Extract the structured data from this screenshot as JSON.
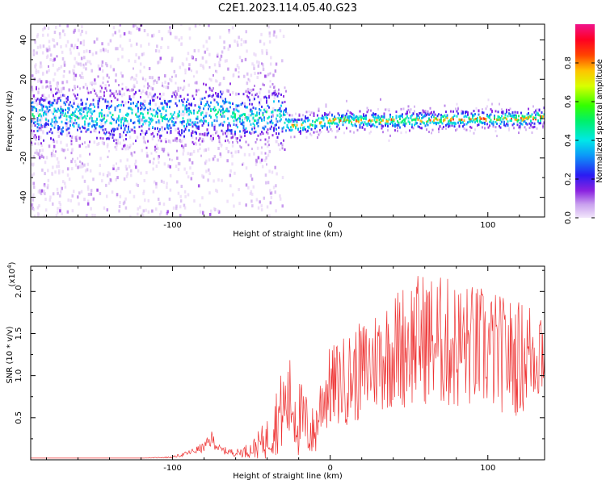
{
  "title": "C2E1.2023.114.05.40.G23",
  "chart_data": [
    {
      "type": "heatmap",
      "xlabel": "Height of straight line (km)",
      "ylabel": "Frequency (Hz)",
      "xlim": [
        -190,
        136
      ],
      "ylim": [
        -50,
        48
      ],
      "x_ticks": [
        -100,
        0,
        100
      ],
      "y_ticks": [
        -40,
        -20,
        0,
        20,
        40
      ],
      "grid": false,
      "description_of_data": "Spectrogram (normalized spectral amplitude). Broad noisy purple/blue scatter for x < -30 km spanning about -45 to +48 Hz; narrow high-amplitude band near 0 Hz for x > -25 km, rising slightly from about -2 Hz to +2 Hz.",
      "ridge": {
        "x": [
          -190,
          -150,
          -100,
          -70,
          -50,
          -35,
          -25,
          0,
          50,
          100,
          130,
          136
        ],
        "y": [
          2,
          1,
          1,
          3,
          0,
          3,
          -4,
          -1,
          -1,
          0,
          0,
          2
        ]
      },
      "colorbar": {
        "label": "Normalized spectral amplitude",
        "range": [
          0.0,
          1.0
        ],
        "ticks": [
          "0.0",
          "0.2",
          "0.4",
          "0.6",
          "0.8"
        ]
      }
    },
    {
      "type": "line",
      "xlabel": "Height of straight line (km)",
      "ylabel": "SNR (10 * v/v)",
      "y_multiplier": "(x10",
      "y_multiplier_exp": "4",
      "y_multiplier_close": ")",
      "xlim": [
        -190,
        136
      ],
      "ylim": [
        0,
        2.3
      ],
      "x_ticks": [
        -100,
        0,
        100
      ],
      "y_ticks": [
        "0.5",
        "1.0",
        "1.5",
        "2.0"
      ],
      "y_tick_values": [
        0.5,
        1.0,
        1.5,
        2.0
      ],
      "color": "#ee3333",
      "series": [
        {
          "x": [
            -190,
            -120,
            -100,
            -90,
            -80,
            -75,
            -70,
            -60,
            -50,
            -40,
            -35,
            -30,
            -25,
            -20,
            -15,
            -10,
            -5,
            0,
            10,
            20,
            30,
            40,
            50,
            60,
            70,
            80,
            90,
            100,
            110,
            120,
            130,
            136
          ],
          "y": [
            0.02,
            0.02,
            0.03,
            0.08,
            0.15,
            0.25,
            0.12,
            0.08,
            0.12,
            0.25,
            0.45,
            0.6,
            0.7,
            0.5,
            0.4,
            0.3,
            0.75,
            0.85,
            0.95,
            1.05,
            1.2,
            1.3,
            1.4,
            1.45,
            1.4,
            1.35,
            1.35,
            1.3,
            1.25,
            1.2,
            1.3,
            1.4
          ],
          "spread": [
            0.0,
            0.0,
            0.01,
            0.03,
            0.06,
            0.1,
            0.05,
            0.04,
            0.1,
            0.25,
            0.4,
            0.5,
            0.55,
            0.5,
            0.4,
            0.3,
            0.45,
            0.5,
            0.55,
            0.6,
            0.65,
            0.7,
            0.8,
            0.8,
            0.8,
            0.8,
            0.75,
            0.75,
            0.7,
            0.7,
            0.65,
            0.7
          ]
        }
      ]
    }
  ]
}
